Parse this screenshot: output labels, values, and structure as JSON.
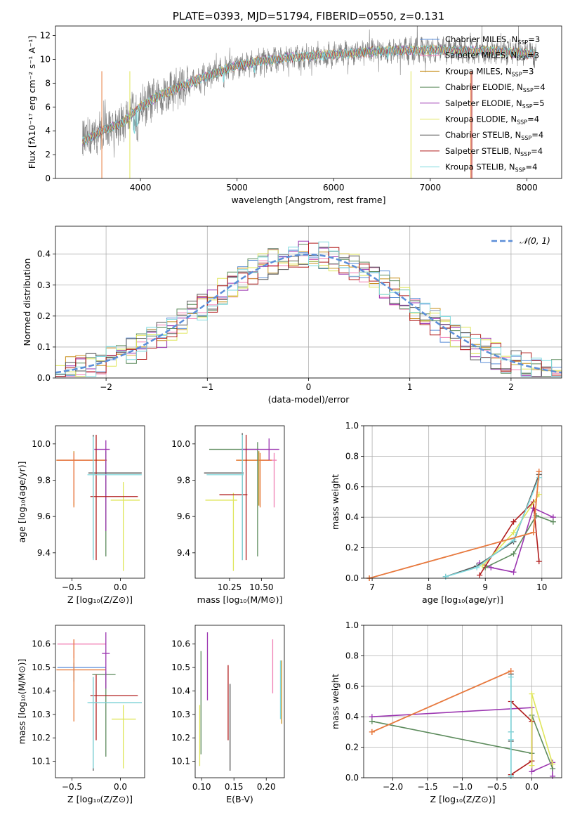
{
  "chart_data": [
    {
      "id": "spectrum",
      "type": "line",
      "title": "PLATE=0393, MJD=51794, FIBERID=0550, z=0.131",
      "xlabel": "wavelength [Angstrom, rest frame]",
      "ylabel": "Flux [fλ10⁻¹⁷ erg cm⁻² s⁻¹ A⁻¹]",
      "xlim": [
        3120,
        8360
      ],
      "ylim": [
        0,
        12.8
      ],
      "xticks": [
        4000,
        5000,
        6000,
        7000,
        8000
      ],
      "yticks": [
        0,
        2,
        4,
        6,
        8,
        10,
        12
      ],
      "grid": false,
      "legend_position": "top-right",
      "observed_color": "#808080",
      "model_color": "#7fd9de",
      "series": [
        {
          "name": "Chabrier MILES, N",
          "sub": "SSP",
          "suffix": "=3",
          "color": "#5b8ed8"
        },
        {
          "name": "Salpeter MILES, N",
          "sub": "SSP",
          "suffix": "=3",
          "color": "#f07fb4"
        },
        {
          "name": "Kroupa MILES, N",
          "sub": "SSP",
          "suffix": "=3",
          "color": "#c8901e"
        },
        {
          "name": "Chabrier ELODIE, N",
          "sub": "SSP",
          "suffix": "=4",
          "color": "#5c8b5c"
        },
        {
          "name": "Salpeter ELODIE, N",
          "sub": "SSP",
          "suffix": "=5",
          "color": "#9b35b0"
        },
        {
          "name": "Kroupa ELODIE, N",
          "sub": "SSP",
          "suffix": "=4",
          "color": "#dfe55a"
        },
        {
          "name": "Chabrier STELIB, N",
          "sub": "SSP",
          "suffix": "=4",
          "color": "#555555"
        },
        {
          "name": "Salpeter STELIB, N",
          "sub": "SSP",
          "suffix": "=4",
          "color": "#b01c1c"
        },
        {
          "name": "Kroupa STELIB, N",
          "sub": "SSP",
          "suffix": "=4",
          "color": "#7fd9de"
        }
      ],
      "continuum": {
        "x": [
          3400,
          3600,
          3800,
          4000,
          4200,
          4500,
          4800,
          5000,
          5300,
          5600,
          6000,
          6300,
          6600,
          7000,
          7300,
          7600,
          8000,
          8100
        ],
        "y": [
          3.1,
          4.0,
          4.6,
          6.0,
          7.0,
          8.0,
          8.9,
          9.5,
          9.9,
          10.2,
          10.4,
          10.6,
          10.7,
          10.8,
          10.7,
          10.7,
          10.5,
          10.4
        ]
      },
      "range_x": [
        3400,
        8100
      ]
    },
    {
      "id": "residuals",
      "type": "histogram",
      "xlabel": "(data-model)/error",
      "ylabel": "Normed distribution",
      "xlim": [
        -2.5,
        2.5
      ],
      "ylim": [
        0,
        0.49
      ],
      "xticks": [
        -2,
        -1,
        0,
        1,
        2
      ],
      "yticks": [
        0.0,
        0.1,
        0.2,
        0.3,
        0.4
      ],
      "grid": true,
      "legend": "𝒩(0, 1)",
      "legend_position": "top-right",
      "gauss_color": "#5b8ed8",
      "bin_width": 0.1
    },
    {
      "id": "Z-age",
      "type": "errorbar",
      "xlabel": "Z [log₁₀(Z/Z⊙)]",
      "ylabel": "age  [log₁₀(age/yr)]",
      "xlim": [
        -0.67,
        0.25
      ],
      "ylim": [
        9.26,
        10.1
      ],
      "xticks": [
        -0.5,
        0.0
      ],
      "yticks": [
        9.4,
        9.6,
        9.8,
        10.0
      ],
      "points": [
        {
          "color": "#c8901e",
          "x": -0.48,
          "y": 9.91,
          "xe": [
            0.18,
            0.33
          ],
          "ye": [
            0.25,
            0.05
          ]
        },
        {
          "color": "#f07fb4",
          "x": -0.48,
          "y": 9.91,
          "xe": [
            0.17,
            0.33
          ],
          "ye": [
            0.23,
            0.04
          ]
        },
        {
          "color": "#e87b3a",
          "x": -0.48,
          "y": 9.91,
          "xe": [
            0.18,
            0.34
          ],
          "ye": [
            0.26,
            0.04
          ]
        },
        {
          "color": "#5c8b5c",
          "x": -0.15,
          "y": 9.84,
          "xe": [
            0.13,
            0.36
          ],
          "ye": [
            0.46,
            0.12
          ]
        },
        {
          "color": "#9b35b0",
          "x": -0.15,
          "y": 9.97,
          "xe": [
            0.12,
            0.04
          ],
          "ye": [
            0.45,
            0.05
          ]
        },
        {
          "color": "#dfe55a",
          "x": 0.03,
          "y": 9.69,
          "xe": [
            0.13,
            0.17
          ],
          "ye": [
            0.39,
            0.1
          ]
        },
        {
          "color": "#555555",
          "x": -0.28,
          "y": 9.84,
          "xe": [
            0.05,
            0.5
          ],
          "ye": [
            0.47,
            0.21
          ]
        },
        {
          "color": "#b01c1c",
          "x": -0.25,
          "y": 9.71,
          "xe": [
            0.06,
            0.43
          ],
          "ye": [
            0.35,
            0.34
          ]
        },
        {
          "color": "#7fd9de",
          "x": -0.28,
          "y": 9.83,
          "xe": [
            0.06,
            0.5
          ],
          "ye": [
            0.47,
            0.21
          ]
        }
      ]
    },
    {
      "id": "mass-age",
      "type": "errorbar",
      "xlabel": "mass [log₁₀(M/M⊙)]",
      "ylabel": "",
      "xlim": [
        9.98,
        10.68
      ],
      "ylim": [
        9.26,
        10.1
      ],
      "xticks": [
        10.25,
        10.5
      ],
      "yticks": [
        9.4,
        9.6,
        9.8,
        10.0
      ],
      "points": [
        {
          "color": "#c8901e",
          "x": 10.48,
          "y": 9.91,
          "xe": [
            0.17,
            0.08
          ],
          "ye": [
            0.25,
            0.05
          ]
        },
        {
          "color": "#f07fb4",
          "x": 10.6,
          "y": 9.91,
          "xe": [
            0.1,
            0.02
          ],
          "ye": [
            0.26,
            0.04
          ]
        },
        {
          "color": "#e87b3a",
          "x": 10.49,
          "y": 9.91,
          "xe": [
            0.19,
            0.09
          ],
          "ye": [
            0.26,
            0.04
          ]
        },
        {
          "color": "#5c8b5c",
          "x": 10.47,
          "y": 9.97,
          "xe": [
            0.38,
            0.01
          ],
          "ye": [
            0.59,
            0.04
          ]
        },
        {
          "color": "#9b35b0",
          "x": 10.56,
          "y": 9.97,
          "xe": [
            0.22,
            0.08
          ],
          "ye": [
            0.06,
            0.06
          ]
        },
        {
          "color": "#dfe55a",
          "x": 10.28,
          "y": 9.69,
          "xe": [
            0.22,
            0.03
          ],
          "ye": [
            0.39,
            0.04
          ]
        },
        {
          "color": "#555555",
          "x": 10.35,
          "y": 9.84,
          "xe": [
            0.3,
            0.01
          ],
          "ye": [
            0.48,
            0.22
          ]
        },
        {
          "color": "#b01c1c",
          "x": 10.38,
          "y": 9.72,
          "xe": [
            0.21,
            0.01
          ],
          "ye": [
            0.36,
            0.33
          ]
        },
        {
          "color": "#7fd9de",
          "x": 10.35,
          "y": 9.83,
          "xe": [
            0.28,
            0.01
          ],
          "ye": [
            0.47,
            0.22
          ]
        }
      ]
    },
    {
      "id": "age-weight",
      "type": "line",
      "xlabel": "age  [log₁₀(age/yr)]",
      "ylabel": "mass weight",
      "xlim": [
        6.85,
        10.35
      ],
      "ylim": [
        0,
        1
      ],
      "xticks": [
        7,
        8,
        9,
        10
      ],
      "yticks": [
        0.0,
        0.2,
        0.4,
        0.6,
        0.8,
        1.0
      ],
      "grid": true,
      "series": [
        {
          "color": "#9b35b0",
          "x": [
            8.9,
            9.1,
            9.5,
            9.85,
            10.2
          ],
          "y": [
            0.1,
            0.07,
            0.04,
            0.46,
            0.4
          ]
        },
        {
          "color": "#5c8b5c",
          "x": [
            9.0,
            9.5,
            9.9,
            10.2
          ],
          "y": [
            0.07,
            0.16,
            0.41,
            0.37
          ]
        },
        {
          "color": "#b01c1c",
          "x": [
            8.9,
            9.5,
            9.85,
            9.95
          ],
          "y": [
            0.02,
            0.37,
            0.5,
            0.11
          ]
        },
        {
          "color": "#dfe55a",
          "x": [
            8.95,
            9.5,
            9.95
          ],
          "y": [
            0.08,
            0.3,
            0.55
          ]
        },
        {
          "color": "#555555",
          "x": [
            8.3,
            8.85,
            9.5,
            9.95
          ],
          "y": [
            0.01,
            0.08,
            0.24,
            0.68
          ]
        },
        {
          "color": "#7fd9de",
          "x": [
            8.3,
            8.85,
            9.5,
            9.95
          ],
          "y": [
            0.01,
            0.07,
            0.25,
            0.66
          ]
        },
        {
          "color": "#c8901e",
          "x": [
            6.95,
            9.85,
            9.95
          ],
          "y": [
            0.0,
            0.3,
            0.7
          ]
        },
        {
          "color": "#f07fb4",
          "x": [
            6.95,
            9.85,
            9.95
          ],
          "y": [
            0.0,
            0.3,
            0.7
          ]
        },
        {
          "color": "#e87b3a",
          "x": [
            6.95,
            9.85,
            9.95
          ],
          "y": [
            0.0,
            0.3,
            0.7
          ]
        }
      ]
    },
    {
      "id": "Z-mass",
      "type": "errorbar",
      "xlabel": "Z [log₁₀(Z/Z⊙)]",
      "ylabel": "mass [log₁₀(M/M⊙)]",
      "xlim": [
        -0.67,
        0.25
      ],
      "ylim": [
        10.03,
        10.68
      ],
      "xticks": [
        -0.5,
        0.0
      ],
      "yticks": [
        10.1,
        10.2,
        10.3,
        10.4,
        10.5,
        10.6
      ],
      "points": [
        {
          "color": "#f07fb4",
          "x": -0.48,
          "y": 10.6,
          "xe": [
            0.17,
            0.33
          ],
          "ye": [
            0.06,
            0.02
          ]
        },
        {
          "color": "#5b8ed8",
          "x": -0.48,
          "y": 10.5,
          "xe": [
            0.17,
            0.33
          ],
          "ye": [
            0.06,
            0.02
          ]
        },
        {
          "color": "#e87b3a",
          "x": -0.48,
          "y": 10.49,
          "xe": [
            0.18,
            0.33
          ],
          "ye": [
            0.22,
            0.13
          ]
        },
        {
          "color": "#5c8b5c",
          "x": -0.15,
          "y": 10.47,
          "xe": [
            0.14,
            0.1
          ],
          "ye": [
            0.35,
            0.01
          ]
        },
        {
          "color": "#9b35b0",
          "x": -0.15,
          "y": 10.56,
          "xe": [
            0.04,
            0.04
          ],
          "ye": [
            0.15,
            0.09
          ]
        },
        {
          "color": "#dfe55a",
          "x": 0.03,
          "y": 10.28,
          "xe": [
            0.12,
            0.13
          ],
          "ye": [
            0.21,
            0.06
          ]
        },
        {
          "color": "#555555",
          "x": -0.28,
          "y": 10.35,
          "xe": [
            0.05,
            0.5
          ],
          "ye": [
            0.29,
            0.11
          ]
        },
        {
          "color": "#b01c1c",
          "x": -0.25,
          "y": 10.38,
          "xe": [
            0.06,
            0.43
          ],
          "ye": [
            0.19,
            0.09
          ]
        },
        {
          "color": "#7fd9de",
          "x": -0.28,
          "y": 10.35,
          "xe": [
            0.06,
            0.5
          ],
          "ye": [
            0.28,
            0.11
          ]
        }
      ]
    },
    {
      "id": "ebv-mass",
      "type": "errorbar",
      "xlabel": "E(B-V)",
      "ylabel": "",
      "xlim": [
        0.09,
        0.228
      ],
      "ylim": [
        10.03,
        10.68
      ],
      "xticks": [
        0.1,
        0.15,
        0.2
      ],
      "yticks": [
        10.1,
        10.2,
        10.3,
        10.4,
        10.5,
        10.6
      ],
      "points": [
        {
          "color": "#f07fb4",
          "x": 0.21,
          "y": 10.5,
          "ye": [
            0.11,
            0.12
          ]
        },
        {
          "color": "#c8901e",
          "x": 0.224,
          "y": 10.39,
          "ye": [
            0.13,
            0.14
          ]
        },
        {
          "color": "#5c8b5c",
          "x": 0.099,
          "y": 10.35,
          "ye": [
            0.22,
            0.22
          ]
        },
        {
          "color": "#dfe55a",
          "x": 0.097,
          "y": 10.2,
          "ye": [
            0.12,
            0.14
          ]
        },
        {
          "color": "#9b35b0",
          "x": 0.109,
          "y": 10.5,
          "ye": [
            0.14,
            0.15
          ]
        },
        {
          "color": "#b01c1c",
          "x": 0.141,
          "y": 10.35,
          "ye": [
            0.16,
            0.16
          ]
        },
        {
          "color": "#555555",
          "x": 0.144,
          "y": 10.25,
          "ye": [
            0.19,
            0.18
          ]
        },
        {
          "color": "#7fd9de",
          "x": 0.222,
          "y": 10.38,
          "ye": [
            0.1,
            0.15
          ]
        }
      ]
    },
    {
      "id": "Z-weight",
      "type": "line",
      "xlabel": "Z [log₁₀(Z/Z⊙)]",
      "ylabel": "mass weight",
      "xlim": [
        -2.42,
        0.43
      ],
      "ylim": [
        0,
        1
      ],
      "xticks": [
        -2.0,
        -1.5,
        -1.0,
        -0.5,
        0.0
      ],
      "yticks": [
        0.0,
        0.2,
        0.4,
        0.6,
        0.8,
        1.0
      ],
      "grid": true,
      "series": [
        {
          "color": "#9b35b0",
          "x": [
            -2.3,
            0.0,
            0.0,
            0.3,
            0.3
          ],
          "y": [
            0.4,
            0.46,
            0.04,
            0.1,
            0.01
          ]
        },
        {
          "color": "#5c8b5c",
          "x": [
            -2.3,
            0.0,
            0.0,
            0.3
          ],
          "y": [
            0.37,
            0.16,
            0.41,
            0.06
          ]
        },
        {
          "color": "#b01c1c",
          "x": [
            -0.3,
            0.0,
            0.0,
            -0.3
          ],
          "y": [
            0.02,
            0.11,
            0.37,
            0.5
          ]
        },
        {
          "color": "#dfe55a",
          "x": [
            0.0,
            0.0,
            0.3
          ],
          "y": [
            0.08,
            0.55,
            0.09
          ]
        },
        {
          "color": "#555555",
          "x": [
            -0.3,
            -0.3,
            -0.3,
            -0.3
          ],
          "y": [
            0.01,
            0.24,
            0.68,
            0.3
          ]
        },
        {
          "color": "#7fd9de",
          "x": [
            -0.3,
            -0.3,
            -0.3,
            -0.3
          ],
          "y": [
            0.01,
            0.25,
            0.66,
            0.3
          ]
        },
        {
          "color": "#c8901e",
          "x": [
            -2.3,
            -0.3
          ],
          "y": [
            0.3,
            0.7
          ]
        },
        {
          "color": "#f07fb4",
          "x": [
            -2.3,
            -0.3
          ],
          "y": [
            0.3,
            0.7
          ]
        },
        {
          "color": "#e87b3a",
          "x": [
            -2.3,
            -0.3
          ],
          "y": [
            0.3,
            0.7
          ]
        }
      ]
    }
  ]
}
